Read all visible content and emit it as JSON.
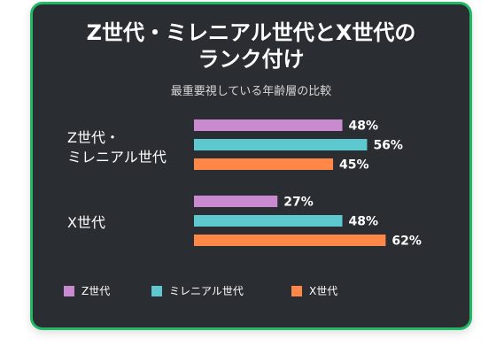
{
  "chart_data": {
    "type": "bar",
    "orientation": "horizontal",
    "title": "Z世代・ミレニアル世代とX世代の\nランク付け",
    "subtitle": "最重要視している年齢層の比較",
    "categories": [
      "Z世代・\nミレニアル世代",
      "X世代"
    ],
    "series": [
      {
        "name": "Z世代",
        "color": "#c98ad0",
        "values": [
          48,
          27
        ]
      },
      {
        "name": "ミレニアル世代",
        "color": "#5ec8cf",
        "values": [
          56,
          48
        ]
      },
      {
        "name": "X世代",
        "color": "#ff8747",
        "values": [
          45,
          62
        ]
      }
    ],
    "value_suffix": "%",
    "xlim": [
      0,
      100
    ],
    "grid": false,
    "legend_position": "bottom-left"
  }
}
